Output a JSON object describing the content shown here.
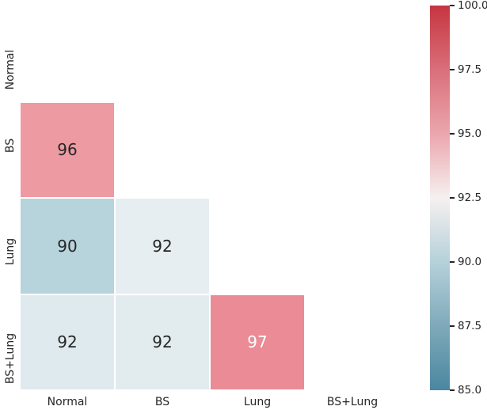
{
  "figure": {
    "background": "#ffffff",
    "text_color": "#262626"
  },
  "chart_data": {
    "type": "heatmap",
    "title": "",
    "categories": [
      "Normal",
      "BS",
      "Lung",
      "BS+Lung"
    ],
    "x_ticklabels": [
      "Normal",
      "BS",
      "Lung",
      "BS+Lung"
    ],
    "y_ticklabels": [
      "Normal",
      "BS",
      "Lung",
      "BS+Lung"
    ],
    "matrix": [
      [
        null,
        null,
        null,
        null
      ],
      [
        96,
        null,
        null,
        null
      ],
      [
        90,
        92,
        null,
        null
      ],
      [
        92,
        92,
        97,
        null
      ]
    ],
    "masked_upper_triangle": true,
    "vmin": 85,
    "vmax": 100,
    "cells": [
      {
        "row": 1,
        "col": 0,
        "label": "96",
        "bg": "#ee9aa2",
        "fg": "#262626"
      },
      {
        "row": 2,
        "col": 0,
        "label": "90",
        "bg": "#b7d3dc",
        "fg": "#262626"
      },
      {
        "row": 2,
        "col": 1,
        "label": "92",
        "bg": "#e6eef1",
        "fg": "#262626"
      },
      {
        "row": 3,
        "col": 0,
        "label": "92",
        "bg": "#dfeaee",
        "fg": "#262626"
      },
      {
        "row": 3,
        "col": 1,
        "label": "92",
        "bg": "#e2ecef",
        "fg": "#262626"
      },
      {
        "row": 3,
        "col": 2,
        "label": "97",
        "bg": "#ea8b96",
        "fg": "#ffffff"
      }
    ],
    "colorbar": {
      "ticks": [
        "100.0",
        "97.5",
        "95.0",
        "92.5",
        "90.0",
        "87.5",
        "85.0"
      ],
      "gradient_stops": [
        {
          "pos": 0,
          "color": "#c63540"
        },
        {
          "pos": 16.7,
          "color": "#d96f7a"
        },
        {
          "pos": 33.3,
          "color": "#eba6ad"
        },
        {
          "pos": 50,
          "color": "#f6f0f0"
        },
        {
          "pos": 66.7,
          "color": "#b5d1da"
        },
        {
          "pos": 83.3,
          "color": "#7fa9ba"
        },
        {
          "pos": 100,
          "color": "#4a87a0"
        }
      ]
    },
    "legend_position": "right-colorbar",
    "grid": false
  }
}
